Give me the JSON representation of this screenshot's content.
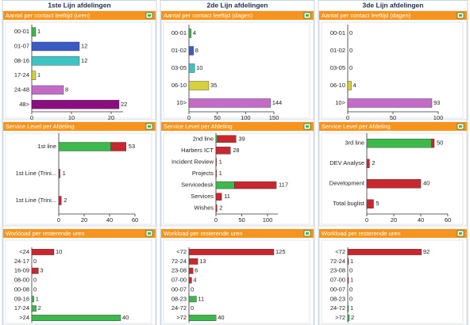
{
  "columns": [
    "1ste Lijn afdelingen",
    "2de Lijn afdelingen",
    "3de Lijn afdelingen"
  ],
  "chart_data": [
    {
      "type": "bar",
      "title": "Aantal per contact leeftijd (uren)",
      "categories": [
        "00-01",
        "01-07",
        "08-16",
        "17-24",
        "24-48",
        "48>"
      ],
      "series": [
        {
          "colors": [
            "#3cb94a",
            "#3b5bc4",
            "#3cc4c4",
            "#d4d13a",
            "#c46bc8",
            "#8a0f7e"
          ],
          "values": [
            1,
            12,
            12,
            1,
            8,
            22
          ]
        }
      ],
      "xlim": [
        0,
        23
      ],
      "xticks": [
        0,
        10,
        20
      ]
    },
    {
      "type": "stacked",
      "title": "Service Level per Afdeling",
      "categories": [
        "1st line",
        "1st Line (Trini...",
        "1st Line (Trini..."
      ],
      "series": [
        {
          "color": "#3cb94a",
          "values": [
            41,
            0,
            0
          ]
        },
        {
          "color": "#c8282d",
          "values": [
            12,
            1,
            2
          ]
        }
      ],
      "totals": [
        53,
        1,
        2
      ],
      "xlim": [
        0,
        60
      ],
      "xticks": [
        0,
        20,
        40,
        60
      ]
    },
    {
      "type": "bar",
      "title": "Workload per resterende uren",
      "categories": [
        "<24",
        "24-17",
        "16-09",
        "08-00",
        "00-08",
        "09-16",
        "17-24",
        ">24"
      ],
      "series": [
        {
          "colors": [
            "#c8282d",
            "#c8282d",
            "#c8282d",
            "#c8282d",
            "#3cb94a",
            "#3cb94a",
            "#3cb94a",
            "#3cb94a"
          ],
          "values": [
            10,
            0,
            3,
            0,
            0,
            1,
            2,
            40
          ]
        }
      ],
      "xlim": [
        0,
        40
      ]
    },
    {
      "type": "bar",
      "title": "Aantal per contact leeftijd (dagen)",
      "categories": [
        "00-01",
        "01-02",
        "03-05",
        "06-10",
        "10>"
      ],
      "series": [
        {
          "colors": [
            "#3cb94a",
            "#3b5bc4",
            "#3cc4c4",
            "#d4d13a",
            "#c46bc8"
          ],
          "values": [
            4,
            8,
            10,
            35,
            144
          ]
        }
      ],
      "xlim": [
        0,
        150
      ],
      "xticks": [
        0,
        50,
        100,
        150
      ]
    },
    {
      "type": "stacked",
      "title": "Service Level per Afdeling",
      "categories": [
        "2nd line",
        "Harbers ICT",
        "Incident Review",
        "Projects",
        "Servicedesk",
        "Services",
        "Wishes"
      ],
      "series": [
        {
          "color": "#3cb94a",
          "values": [
            3,
            0,
            0,
            0,
            36,
            0,
            0
          ]
        },
        {
          "color": "#c8282d",
          "values": [
            36,
            28,
            1,
            1,
            81,
            11,
            2
          ]
        }
      ],
      "totals": [
        39,
        28,
        1,
        1,
        117,
        11,
        2
      ],
      "xlim": [
        0,
        120
      ],
      "xticks": [
        0,
        50,
        100
      ]
    },
    {
      "type": "bar",
      "title": "Workload per resterende uren",
      "categories": [
        "<72",
        "72-24",
        "23-08",
        "07-00",
        "00-07",
        "08-23",
        "24-72",
        ">72"
      ],
      "series": [
        {
          "colors": [
            "#c8282d",
            "#c8282d",
            "#c8282d",
            "#c8282d",
            "#3cb94a",
            "#3cb94a",
            "#3cb94a",
            "#3cb94a"
          ],
          "values": [
            125,
            13,
            6,
            4,
            0,
            11,
            0,
            40
          ]
        }
      ],
      "xlim": [
        0,
        125
      ]
    },
    {
      "type": "bar",
      "title": "Aantal per contact leeftijd (dagen)",
      "categories": [
        "00-01",
        "01-02",
        "03-05",
        "06-10",
        "10>"
      ],
      "series": [
        {
          "colors": [
            "#3cb94a",
            "#3b5bc4",
            "#3cc4c4",
            "#d4d13a",
            "#c46bc8"
          ],
          "values": [
            0,
            0,
            0,
            4,
            93
          ]
        }
      ],
      "xlim": [
        0,
        100
      ],
      "xticks": [
        0,
        50,
        100
      ]
    },
    {
      "type": "stacked",
      "title": "Service Level per Afdeling",
      "categories": [
        "3rd line",
        "DEV Analyse",
        "Development",
        "Total buglist"
      ],
      "series": [
        {
          "color": "#3cb94a",
          "values": [
            48,
            0,
            0,
            0
          ]
        },
        {
          "color": "#c8282d",
          "values": [
            2,
            2,
            40,
            5
          ]
        }
      ],
      "totals": [
        50,
        2,
        40,
        5
      ],
      "xlim": [
        0,
        60
      ],
      "xticks": [
        0,
        20,
        40,
        60
      ]
    },
    {
      "type": "bar",
      "title": "Workload per resterende uren",
      "categories": [
        "<72",
        "72-24",
        "23-08",
        "07-00",
        "00-07",
        "08-23",
        "24-72",
        ">72"
      ],
      "series": [
        {
          "colors": [
            "#c8282d",
            "#c8282d",
            "#c8282d",
            "#c8282d",
            "#3cb94a",
            "#3cb94a",
            "#3cb94a",
            "#3cb94a"
          ],
          "values": [
            92,
            1,
            0,
            1,
            0,
            0,
            1,
            2
          ]
        }
      ],
      "xlim": [
        0,
        100
      ]
    }
  ]
}
